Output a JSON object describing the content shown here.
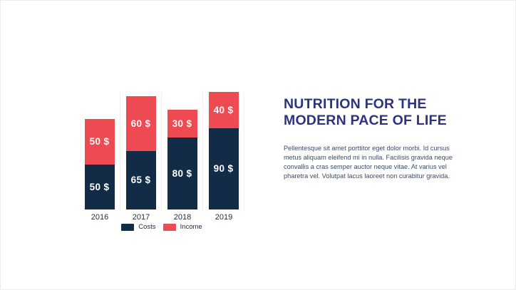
{
  "slide": {
    "title": "NUTRITION FOR THE MODERN PACE OF LIFE",
    "title_color": "#2C3480",
    "body": "Pellentesque sit amet porttitor eget dolor morbi. Id cursus metus aliquam eleifend mi in nulla. Facilisis gravida neque convallis a cras semper auctor neque vitae. At varius vel pharetra vel. Volutpat lacus laoreet non curabitur gravida.",
    "body_color": "#3D4C69",
    "background_color": "#FFFFFF"
  },
  "chart_data": {
    "type": "bar",
    "stacked": true,
    "categories": [
      "2016",
      "2017",
      "2018",
      "2019"
    ],
    "series": [
      {
        "name": "Costs",
        "color": "#122C47",
        "values": [
          50,
          65,
          80,
          90
        ]
      },
      {
        "name": "Income",
        "color": "#EE4A52",
        "values": [
          50,
          60,
          30,
          40
        ]
      }
    ],
    "label_suffix": " $",
    "bar_value_labels": [
      [
        "50 $",
        "65 $",
        "80 $",
        "90 $"
      ],
      [
        "50 $",
        "60 $",
        "30 $",
        "40 $"
      ]
    ],
    "ylim": [
      0,
      130
    ],
    "xlabel": "",
    "ylabel": "",
    "grid": "vertical category separators only",
    "gridline_color": "#F1F1F1",
    "legend_position": "bottom",
    "legend_labels": [
      "Costs",
      "Income"
    ]
  }
}
